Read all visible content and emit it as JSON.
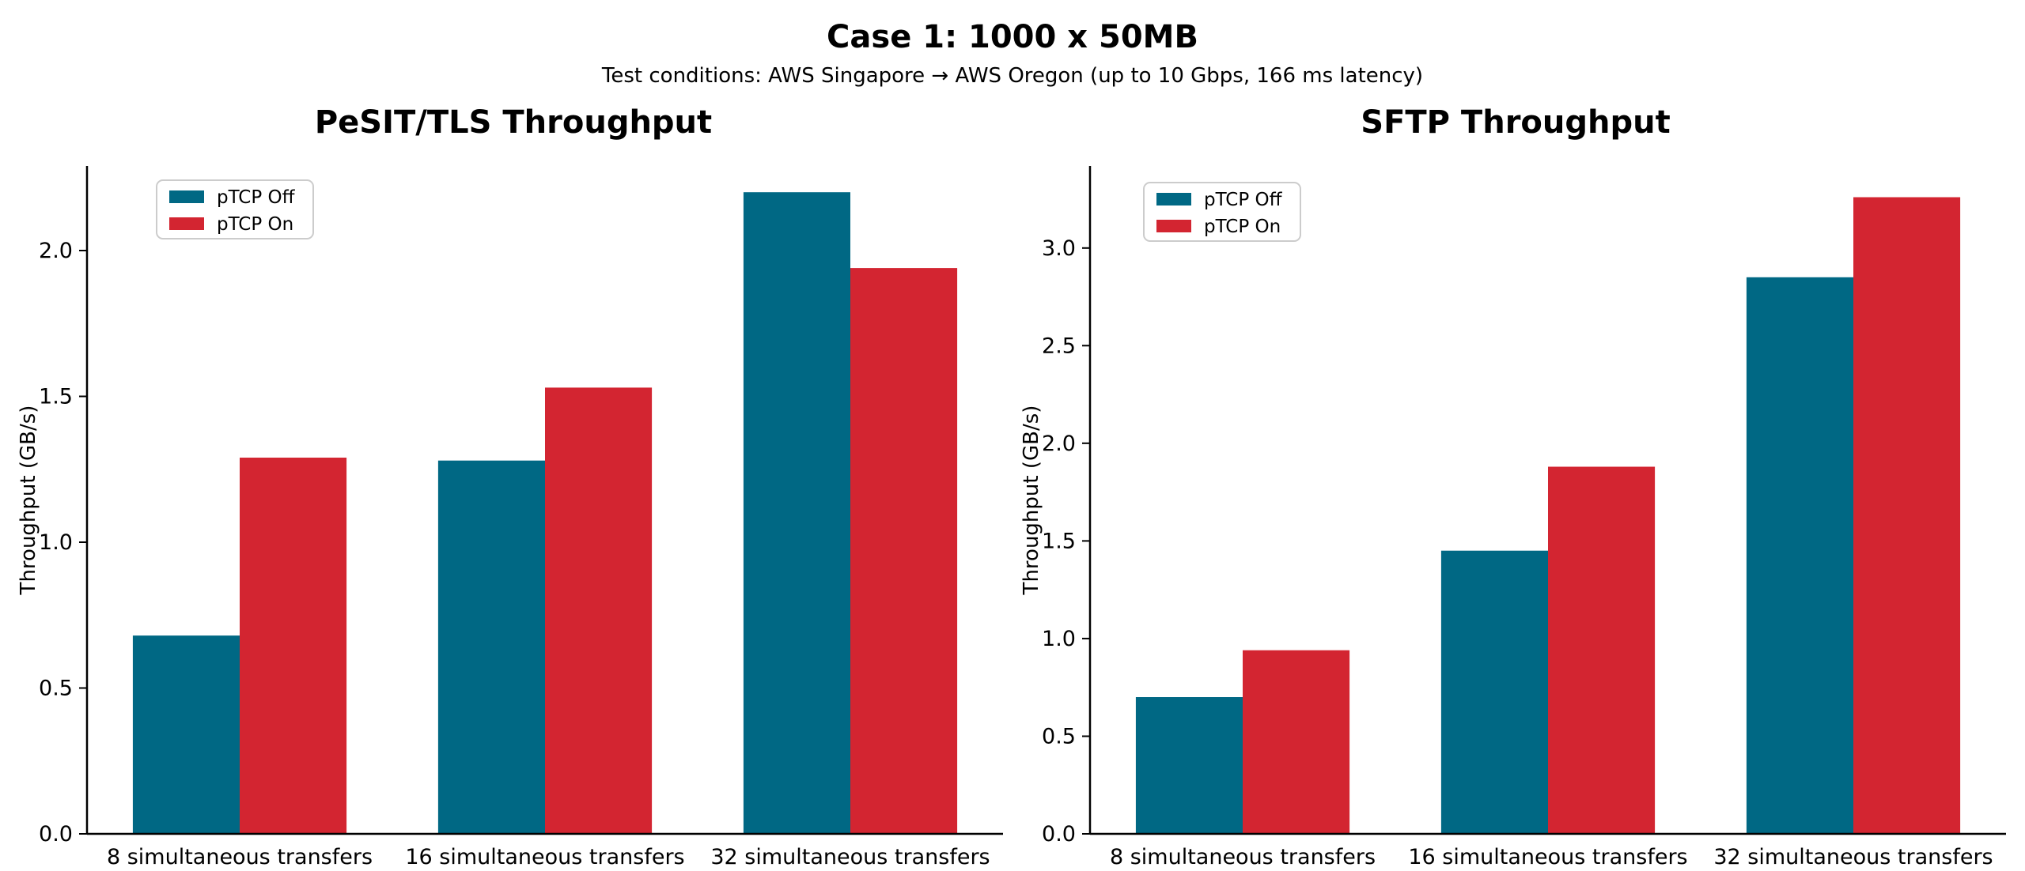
{
  "figure": {
    "title": "Case 1: 1000 x 50MB",
    "subtitle": "Test conditions: AWS Singapore → AWS Oregon (up to 10 Gbps, 166 ms latency)"
  },
  "colors": {
    "ptcp_off": "#006884",
    "ptcp_on": "#d32531",
    "axis": "#000000"
  },
  "chart_data": [
    {
      "type": "bar",
      "title": "PeSIT/TLS Throughput",
      "xlabel": "",
      "ylabel": "Throughput (GB/s)",
      "categories": [
        "8 simultaneous transfers",
        "16 simultaneous transfers",
        "32 simultaneous transfers"
      ],
      "series": [
        {
          "name": "pTCP Off",
          "values": [
            0.68,
            1.28,
            2.2
          ]
        },
        {
          "name": "pTCP On",
          "values": [
            1.29,
            1.53,
            1.94
          ]
        }
      ],
      "ylim": [
        0,
        2.29
      ],
      "yticks": [
        "0.0",
        "0.5",
        "1.0",
        "1.5",
        "2.0"
      ],
      "legend": "top-left",
      "grid": false
    },
    {
      "type": "bar",
      "title": "SFTP Throughput",
      "xlabel": "",
      "ylabel": "Throughput (GB/s)",
      "categories": [
        "8 simultaneous transfers",
        "16 simultaneous transfers",
        "32 simultaneous transfers"
      ],
      "series": [
        {
          "name": "pTCP Off",
          "values": [
            0.7,
            1.45,
            2.85
          ]
        },
        {
          "name": "pTCP On",
          "values": [
            0.94,
            1.88,
            3.26
          ]
        }
      ],
      "ylim": [
        0,
        3.42
      ],
      "yticks": [
        "0.0",
        "0.5",
        "1.0",
        "1.5",
        "2.0",
        "2.5",
        "3.0"
      ],
      "legend": "top-left",
      "grid": false
    }
  ]
}
